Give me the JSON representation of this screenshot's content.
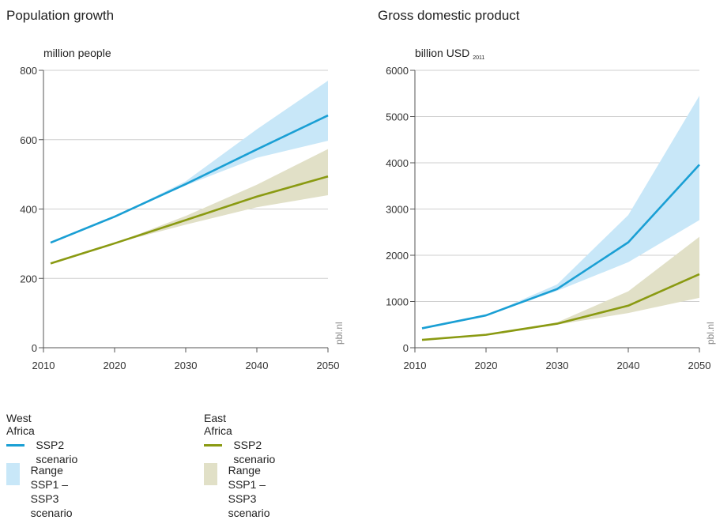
{
  "legend": {
    "groups": [
      {
        "title": "West Africa",
        "line_label": "SSP2 scenario",
        "range_label_1": "Range",
        "range_label_2": "SSP1 – SSP3 scenario",
        "line_color": "#1a9fd4",
        "band_color": "#c8e7f8"
      },
      {
        "title": "East Africa",
        "line_label": "SSP2 scenario",
        "range_label_1": "Range",
        "range_label_2": "SSP1 – SSP3 scenario",
        "line_color": "#8a9a12",
        "band_color": "#e1e0c7"
      }
    ]
  },
  "chart_data": [
    {
      "type": "area",
      "title": "Population growth",
      "ylabel": "million people",
      "credit": "pbl.nl",
      "x": [
        2011,
        2020,
        2030,
        2040,
        2050
      ],
      "xticks": [
        2010,
        2020,
        2030,
        2040,
        2050
      ],
      "xlim": [
        2010,
        2050
      ],
      "yticks": [
        0,
        200,
        400,
        600,
        800
      ],
      "ylim": [
        0,
        800
      ],
      "grid": true,
      "series": [
        {
          "name": "West Africa",
          "values": [
            303,
            378,
            472,
            572,
            670
          ],
          "low": [
            303,
            378,
            468,
            548,
            597
          ],
          "high": [
            303,
            378,
            480,
            630,
            770
          ],
          "color": "#1a9fd4",
          "band": "#c8e7f8"
        },
        {
          "name": "East Africa",
          "values": [
            243,
            301,
            368,
            436,
            494
          ],
          "low": [
            243,
            301,
            355,
            405,
            440
          ],
          "high": [
            243,
            301,
            380,
            470,
            573
          ],
          "color": "#8a9a12",
          "band": "#e1e0c7"
        }
      ]
    },
    {
      "type": "area",
      "title": "Gross domestic product",
      "ylabel": "billion USD",
      "ylabel_sub": "2011",
      "credit": "pbl.nl",
      "x": [
        2011,
        2020,
        2030,
        2040,
        2050
      ],
      "xticks": [
        2010,
        2020,
        2030,
        2040,
        2050
      ],
      "xlim": [
        2010,
        2050
      ],
      "yticks": [
        0,
        1000,
        2000,
        3000,
        4000,
        5000,
        6000
      ],
      "ylim": [
        0,
        6000
      ],
      "grid": true,
      "series": [
        {
          "name": "West Africa",
          "values": [
            420,
            700,
            1270,
            2280,
            3960
          ],
          "low": [
            420,
            700,
            1230,
            1850,
            2760
          ],
          "high": [
            420,
            700,
            1370,
            2870,
            5450
          ],
          "color": "#1a9fd4",
          "band": "#c8e7f8"
        },
        {
          "name": "East Africa",
          "values": [
            170,
            280,
            520,
            910,
            1590
          ],
          "low": [
            170,
            280,
            500,
            750,
            1080
          ],
          "high": [
            170,
            280,
            550,
            1220,
            2400
          ],
          "color": "#8a9a12",
          "band": "#e1e0c7"
        }
      ]
    }
  ]
}
